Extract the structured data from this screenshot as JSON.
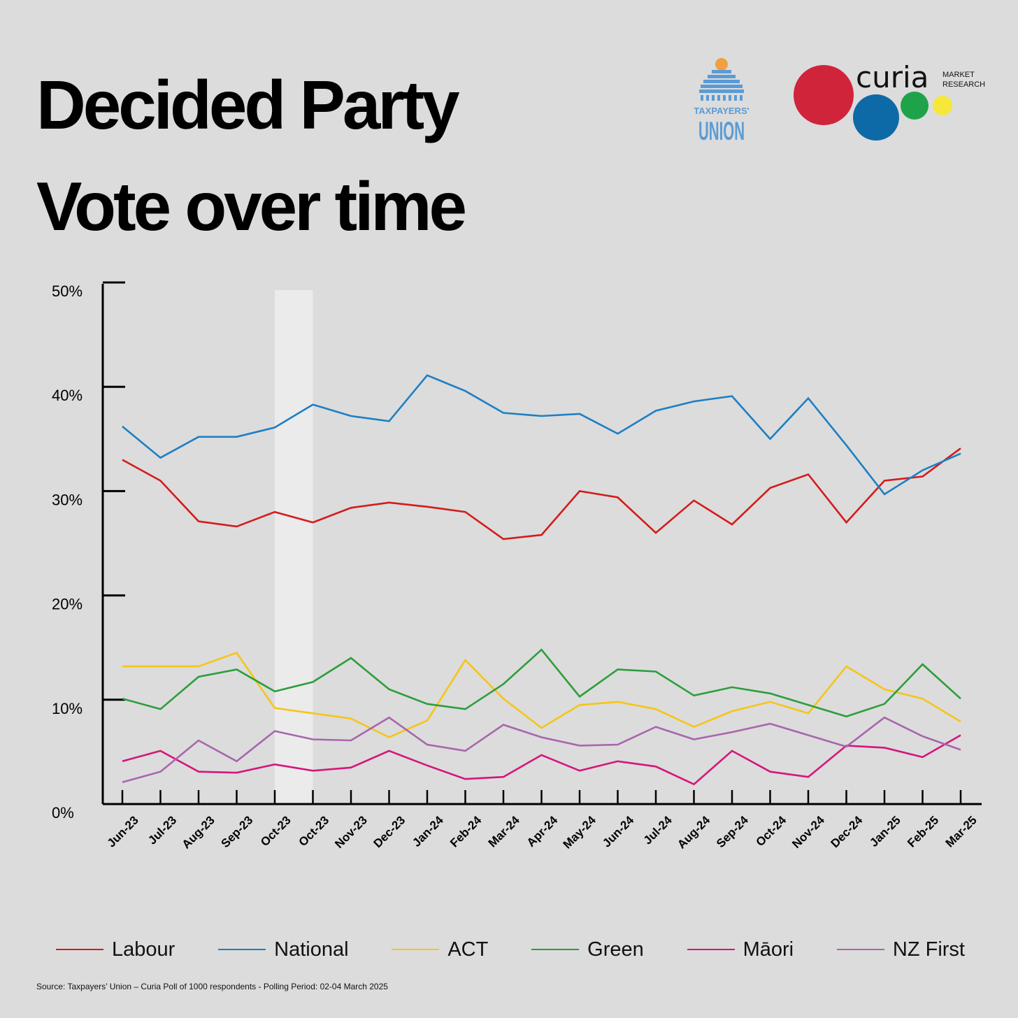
{
  "header": {
    "title_line1": "Decided Party",
    "title_line2": "Vote over time"
  },
  "logos": {
    "taxpayers_union": {
      "line1": "TAXPAYERS'",
      "line2": "UNION",
      "color": "#5b9bd5",
      "accent": "#f0a040"
    },
    "curia": {
      "word": "curia",
      "tag1": "MARKET",
      "tag2": "RESEARCH",
      "circle_colors": [
        "#d0243a",
        "#0e6aa6",
        "#1ea34a",
        "#f5e83a"
      ]
    }
  },
  "chart_data": {
    "type": "line",
    "categories": [
      "Jun-23",
      "Jul-23",
      "Aug-23",
      "Sep-23",
      "Oct-23",
      "Oct-23",
      "Nov-23",
      "Dec-23",
      "Jan-24",
      "Feb-24",
      "Mar-24",
      "Apr-24",
      "May-24",
      "Jun-24",
      "Jul-24",
      "Aug-24",
      "Sep-24",
      "Oct-24",
      "Nov-24",
      "Dec-24",
      "Jan-25",
      "Feb-25",
      "Mar-25"
    ],
    "y_ticks": [
      "0%",
      "10%",
      "20%",
      "30%",
      "40%",
      "50%"
    ],
    "ylim": [
      0,
      50
    ],
    "highlight_band": {
      "from_index": 4,
      "to_index": 5
    },
    "series": [
      {
        "name": "Labour",
        "color": "#d41b1b",
        "values": [
          33.0,
          31.0,
          27.1,
          26.6,
          28.0,
          27.0,
          28.4,
          28.9,
          28.5,
          28.0,
          25.4,
          25.8,
          30.0,
          29.4,
          26.0,
          29.1,
          26.8,
          30.3,
          31.6,
          27.0,
          31.0,
          31.4,
          34.1
        ]
      },
      {
        "name": "National",
        "color": "#1d7fc4",
        "values": [
          36.2,
          33.2,
          35.2,
          35.2,
          36.1,
          38.3,
          37.2,
          36.7,
          41.1,
          39.6,
          37.5,
          37.2,
          37.4,
          35.5,
          37.7,
          38.6,
          39.1,
          35.0,
          38.9,
          34.4,
          29.7,
          32.0,
          33.6
        ]
      },
      {
        "name": "ACT",
        "color": "#f5c518",
        "values": [
          13.2,
          13.2,
          13.2,
          14.5,
          9.2,
          8.7,
          8.2,
          6.4,
          8.0,
          13.8,
          10.1,
          7.3,
          9.5,
          9.8,
          9.1,
          7.4,
          8.9,
          9.8,
          8.7,
          13.2,
          11.0,
          10.1,
          7.9
        ]
      },
      {
        "name": "Green",
        "color": "#2b9e3b",
        "values": [
          10.1,
          9.1,
          12.2,
          12.9,
          10.8,
          11.7,
          14.0,
          11.0,
          9.6,
          9.1,
          11.5,
          14.8,
          10.3,
          12.9,
          12.7,
          10.4,
          11.2,
          10.6,
          9.5,
          8.4,
          9.6,
          13.4,
          10.1
        ]
      },
      {
        "name": "Māori",
        "color": "#d6157c",
        "values": [
          4.1,
          5.1,
          3.1,
          3.0,
          3.8,
          3.2,
          3.5,
          5.1,
          3.7,
          2.4,
          2.6,
          4.7,
          3.2,
          4.1,
          3.6,
          1.9,
          5.1,
          3.1,
          2.6,
          5.6,
          5.4,
          4.5,
          6.6
        ]
      },
      {
        "name": "NZ First",
        "color": "#a866ad",
        "values": [
          2.1,
          3.1,
          6.1,
          4.1,
          7.0,
          6.2,
          6.1,
          8.3,
          5.7,
          5.1,
          7.6,
          6.4,
          5.6,
          5.7,
          7.4,
          6.2,
          6.9,
          7.7,
          6.6,
          5.5,
          8.3,
          6.5,
          5.2
        ]
      }
    ]
  },
  "source_text": "Source: Taxpayers’ Union – Curia Poll of 1000 respondents -  Polling Period: 02-04 March 2025"
}
